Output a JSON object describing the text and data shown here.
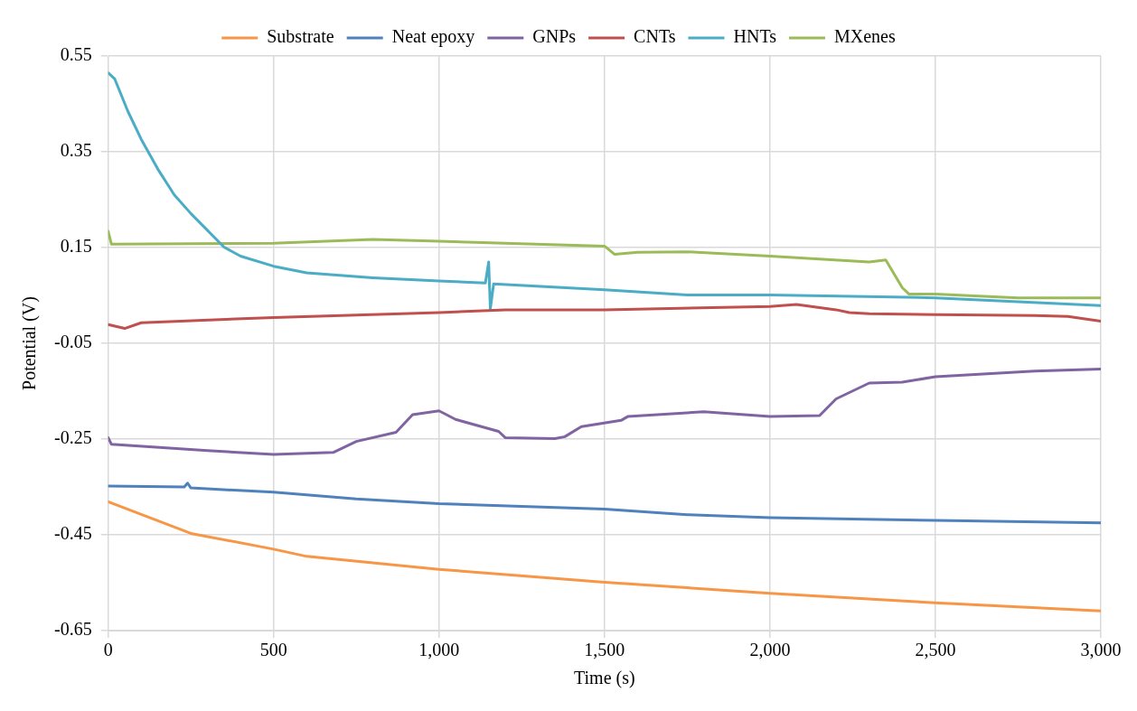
{
  "chart_data": {
    "type": "line",
    "xlabel": "Time (s)",
    "ylabel": "Potential (V)",
    "xlim": [
      0,
      3000
    ],
    "xticks": [
      {
        "value": 0,
        "label": "0"
      },
      {
        "value": 500,
        "label": "500"
      },
      {
        "value": 1000,
        "label": "1,000"
      },
      {
        "value": 1500,
        "label": "1,500"
      },
      {
        "value": 2000,
        "label": "2,000"
      },
      {
        "value": 2500,
        "label": "2,500"
      },
      {
        "value": 3000,
        "label": "3,000"
      }
    ],
    "ylim": [
      -0.65,
      0.55
    ],
    "yticks": [
      -0.65,
      -0.45,
      -0.25,
      -0.05,
      0.15,
      0.35,
      0.55
    ],
    "grid": true,
    "legend": "top",
    "marker": "none",
    "line_style": "solid",
    "series": [
      {
        "name": "Substrate",
        "color": "#f79646",
        "x": [
          0,
          250,
          500,
          600,
          1000,
          1500,
          2000,
          2500,
          3000
        ],
        "values": [
          -0.381,
          -0.447,
          -0.48,
          -0.495,
          -0.522,
          -0.549,
          -0.572,
          -0.592,
          -0.609
        ]
      },
      {
        "name": "Neat epoxy",
        "color": "#4f81bd",
        "x": [
          0,
          230,
          240,
          250,
          500,
          750,
          1000,
          1500,
          1750,
          2000,
          2500,
          3000
        ],
        "values": [
          -0.348,
          -0.35,
          -0.342,
          -0.352,
          -0.361,
          -0.375,
          -0.385,
          -0.396,
          -0.408,
          -0.414,
          -0.42,
          -0.425
        ]
      },
      {
        "name": "GNPs",
        "color": "#8064a2",
        "x": [
          0,
          10,
          300,
          500,
          680,
          750,
          870,
          920,
          1000,
          1050,
          1180,
          1200,
          1350,
          1380,
          1430,
          1550,
          1570,
          1800,
          2000,
          2150,
          2200,
          2300,
          2400,
          2500,
          2800,
          3000
        ],
        "values": [
          -0.247,
          -0.261,
          -0.274,
          -0.282,
          -0.278,
          -0.255,
          -0.236,
          -0.199,
          -0.191,
          -0.209,
          -0.234,
          -0.247,
          -0.249,
          -0.245,
          -0.224,
          -0.211,
          -0.203,
          -0.193,
          -0.203,
          -0.201,
          -0.166,
          -0.133,
          -0.131,
          -0.12,
          -0.108,
          -0.104
        ]
      },
      {
        "name": "CNTs",
        "color": "#c0504d",
        "x": [
          0,
          50,
          100,
          500,
          1000,
          1200,
          1500,
          2000,
          2080,
          2200,
          2240,
          2300,
          2500,
          2800,
          2900,
          3000
        ],
        "values": [
          -0.011,
          -0.019,
          -0.007,
          0.004,
          0.014,
          0.02,
          0.02,
          0.027,
          0.031,
          0.02,
          0.014,
          0.012,
          0.01,
          0.008,
          0.006,
          -0.004
        ]
      },
      {
        "name": "HNTs",
        "color": "#4bacc6",
        "x": [
          0,
          20,
          60,
          100,
          150,
          200,
          250,
          300,
          350,
          400,
          500,
          600,
          800,
          1000,
          1140,
          1150,
          1155,
          1165,
          1500,
          1750,
          2000,
          2500,
          3000
        ],
        "values": [
          0.515,
          0.502,
          0.434,
          0.376,
          0.314,
          0.26,
          0.221,
          0.186,
          0.151,
          0.132,
          0.111,
          0.097,
          0.087,
          0.08,
          0.076,
          0.12,
          0.022,
          0.074,
          0.062,
          0.051,
          0.051,
          0.045,
          0.029
        ]
      },
      {
        "name": "MXenes",
        "color": "#9bbb59",
        "x": [
          0,
          10,
          500,
          800,
          1000,
          1200,
          1500,
          1530,
          1600,
          1750,
          2000,
          2300,
          2350,
          2400,
          2420,
          2500,
          2750,
          3000
        ],
        "values": [
          0.184,
          0.157,
          0.159,
          0.167,
          0.163,
          0.159,
          0.153,
          0.136,
          0.14,
          0.141,
          0.132,
          0.12,
          0.124,
          0.066,
          0.053,
          0.053,
          0.045,
          0.045
        ]
      }
    ]
  }
}
